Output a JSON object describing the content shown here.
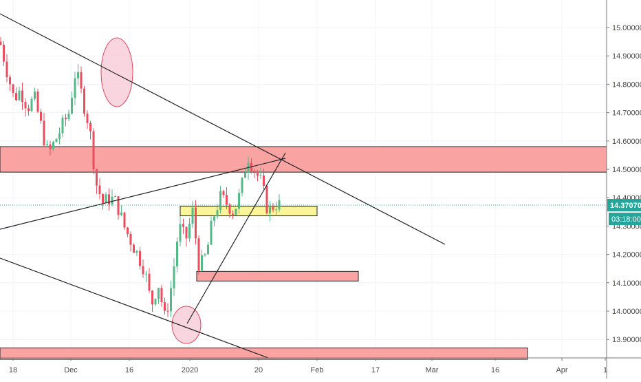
{
  "chart_data": {
    "type": "candlestick",
    "title": "",
    "ylim": [
      13.85,
      15.1
    ],
    "y_ticks": [
      "15.00000",
      "14.90000",
      "14.80000",
      "14.70000",
      "14.60000",
      "14.50000",
      "14.40000",
      "14.30000",
      "14.20000",
      "14.10000",
      "14.00000",
      "13.90000"
    ],
    "x_ticks": [
      "18",
      "Dec",
      "16",
      "2020",
      "20",
      "Feb",
      "17",
      "Mar",
      "16",
      "Apr",
      "1"
    ],
    "price_path": [
      14.95,
      14.85,
      14.75,
      14.78,
      14.72,
      14.75,
      14.65,
      14.55,
      14.6,
      14.65,
      14.7,
      14.85,
      14.75,
      14.65,
      14.45,
      14.38,
      14.4,
      14.38,
      14.3,
      14.25,
      14.2,
      14.15,
      14.02,
      14.1,
      13.97,
      14.1,
      14.3,
      14.25,
      14.35,
      14.15,
      14.2,
      14.33,
      14.4,
      14.38,
      14.35,
      14.42,
      14.55,
      14.5,
      14.45,
      14.35,
      14.38,
      14.37
    ],
    "last_price": "14.37070",
    "countdown": "03:18:00",
    "zones": [
      {
        "name": "resistance-zone",
        "top": 14.58,
        "bottom": 14.49,
        "color": "#f9a3a3"
      },
      {
        "name": "support-zone-yellow",
        "top": 14.37,
        "bottom": 14.345,
        "color": "#fbf59a"
      },
      {
        "name": "support-zone-mid",
        "top": 14.14,
        "bottom": 14.12,
        "color": "#f9a3a3"
      },
      {
        "name": "support-zone-bottom",
        "top": 13.87,
        "bottom": 13.83,
        "color": "#f9a3a3"
      }
    ],
    "colors": {
      "up": "#53b987",
      "down": "#eb4d5c",
      "price_label": "#26a69a",
      "ellipse": "#f7c5d2"
    }
  }
}
